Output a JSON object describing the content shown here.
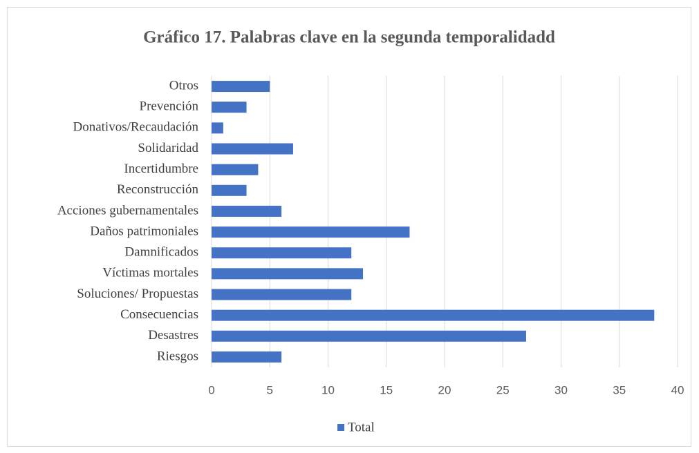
{
  "chart_data": {
    "type": "bar",
    "orientation": "horizontal",
    "title": "Gráfico 17. Palabras clave en la segunda temporalidadd",
    "categories": [
      "Otros",
      "Prevención",
      "Donativos/Recaudación",
      "Solidaridad",
      "Incertidumbre",
      "Reconstrucción",
      "Acciones gubernamentales",
      "Daños patrimoniales",
      "Damnificados",
      "Víctimas mortales",
      "Soluciones/ Propuestas",
      "Consecuencias",
      "Desastres",
      "Riesgos"
    ],
    "series": [
      {
        "name": "Total",
        "color": "#4472c4",
        "values": [
          5,
          3,
          1,
          7,
          4,
          3,
          6,
          17,
          12,
          13,
          12,
          38,
          27,
          6
        ]
      }
    ],
    "xlim": [
      0,
      40
    ],
    "xticks": [
      0,
      5,
      10,
      15,
      20,
      25,
      30,
      35,
      40
    ],
    "grid": true,
    "legend": "bottom"
  }
}
